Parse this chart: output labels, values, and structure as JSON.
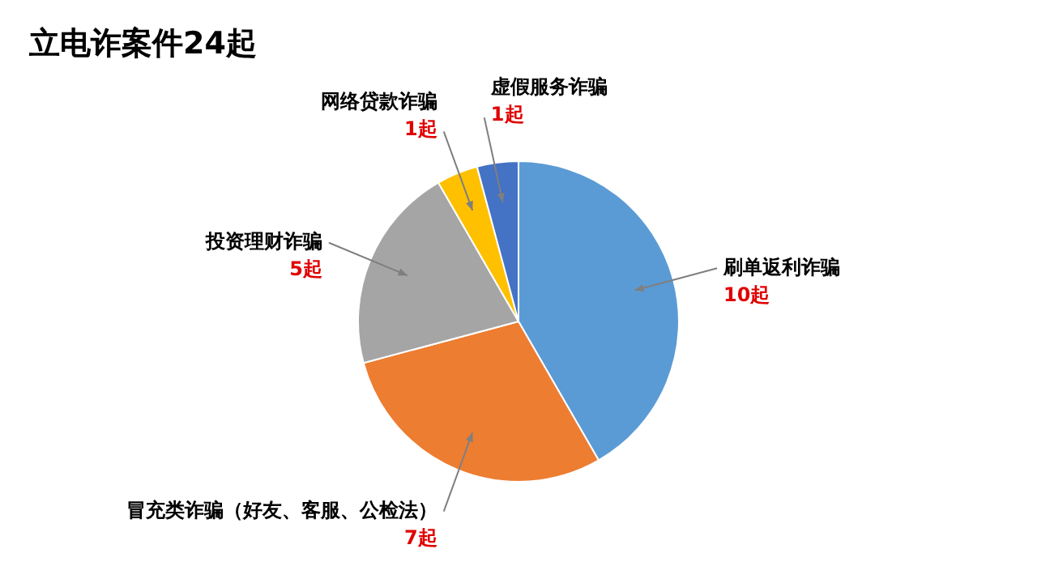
{
  "chart_data": {
    "type": "pie",
    "title": "立电诈案件24起",
    "categories": [
      "刷单返利诈骗",
      "冒充类诈骗（好友、客服、公检法）",
      "投资理财诈骗",
      "网络贷款诈骗",
      "虚假服务诈骗"
    ],
    "values": [
      10,
      7,
      5,
      1,
      1
    ],
    "colors": [
      "#5b9bd5",
      "#ed7d31",
      "#a5a5a5",
      "#ffc000",
      "#4472c4"
    ],
    "value_labels": [
      "10起",
      "7起",
      "5起",
      "1起",
      "1起"
    ],
    "legend": false
  }
}
